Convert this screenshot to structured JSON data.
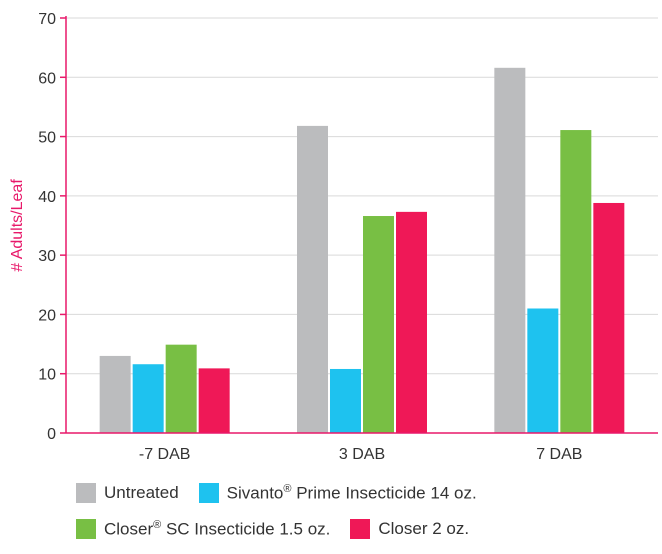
{
  "chart_data": {
    "type": "bar",
    "title": "",
    "xlabel": "",
    "ylabel": "# Adults/Leaf",
    "ylim": [
      0,
      70
    ],
    "yticks": [
      0,
      10,
      20,
      30,
      40,
      50,
      60,
      70
    ],
    "grid": true,
    "legend_position": "bottom",
    "categories": [
      "-7 DAB",
      "3 DAB",
      "7 DAB"
    ],
    "series": [
      {
        "name": "Untreated",
        "color": "#bbbcbe",
        "values": [
          13,
          51.8,
          61.6
        ]
      },
      {
        "name": "Sivanto",
        "name_sup": "®",
        "name_rest": " Prime Insecticide 14 oz.",
        "color": "#1ec2ef",
        "values": [
          11.6,
          10.8,
          21
        ]
      },
      {
        "name": "Closer",
        "name_sup": "®",
        "name_rest": " SC Insecticide 1.5 oz.",
        "color": "#78bf44",
        "values": [
          14.9,
          36.6,
          51.1
        ]
      },
      {
        "name": "Closer 2 oz.",
        "color": "#ef1857",
        "values": [
          10.9,
          37.3,
          38.8
        ]
      }
    ],
    "axis_color": "#e8196a"
  }
}
